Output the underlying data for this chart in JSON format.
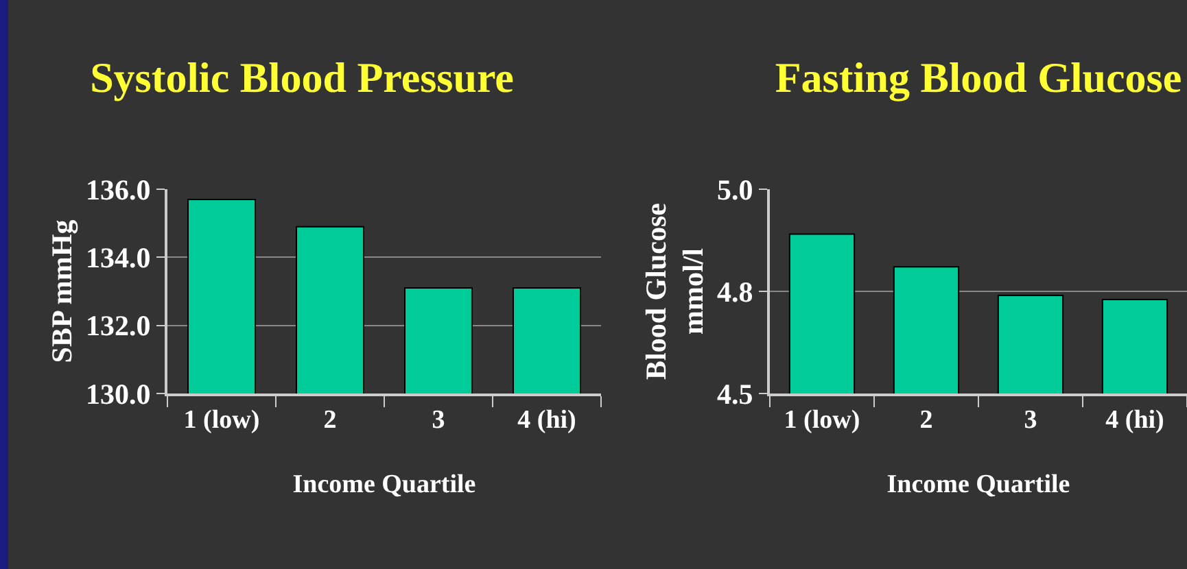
{
  "chart_data": [
    {
      "type": "bar",
      "title": "Systolic Blood Pressure",
      "xlabel": "Income Quartile",
      "ylabel": "SBP mmHg",
      "categories": [
        "1 (low)",
        "2",
        "3",
        "4 (hi)"
      ],
      "values": [
        135.7,
        134.9,
        133.1,
        133.1
      ],
      "color": "#00cc99",
      "ylim": [
        130,
        136
      ],
      "yticks": [
        {
          "value": 130,
          "label": "130.0"
        },
        {
          "value": 132,
          "label": "132.0"
        },
        {
          "value": 134,
          "label": "134.0"
        },
        {
          "value": 136,
          "label": "136.0"
        }
      ],
      "grid": "y"
    },
    {
      "type": "bar",
      "title": "Fasting Blood Glucose",
      "xlabel": "Income Quartile",
      "ylabel": "Blood Glucose\nmmol/l",
      "categories": [
        "1 (low)",
        "2",
        "3",
        "4 (hi)"
      ],
      "values": [
        4.89,
        4.81,
        4.74,
        4.73
      ],
      "color": "#00cc99",
      "ylim": [
        4.5,
        5.0
      ],
      "yticks": [
        {
          "value": 4.5,
          "label": "4.5"
        },
        {
          "value": 4.75,
          "label": "4.8"
        },
        {
          "value": 5.0,
          "label": "5.0"
        }
      ],
      "grid": "y"
    }
  ]
}
